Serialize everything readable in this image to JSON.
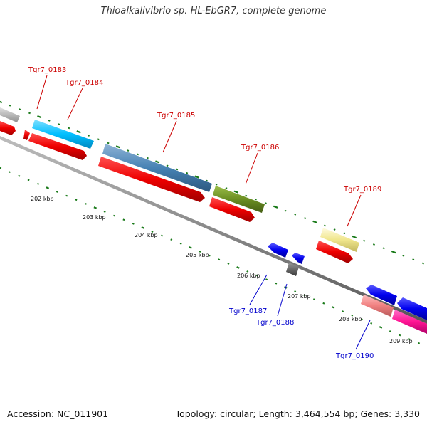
{
  "title": "Thioalkalivibrio sp. HL-EbGR7, complete genome",
  "accession": "Accession: NC_011901",
  "topology": "Topology: circular; Length: 3,464,554 bp; Genes: 3,330",
  "colors": {
    "forward_label": "#cc0000",
    "reverse_label": "#0000cc",
    "backbone": "#808080",
    "tick_mark": "#1a7a1a",
    "cds_red": "#ff0000"
  },
  "ruler": {
    "labels": [
      "202 kbp",
      "203 kbp",
      "204 kbp",
      "205 kbp",
      "206 kbp",
      "207 kbp",
      "208 kbp",
      "209 kbp"
    ]
  },
  "genes": [
    {
      "label": "Tgr7_0183",
      "strand": "forward",
      "feature_color": "#a8a8a8"
    },
    {
      "label": "Tgr7_0184",
      "strand": "forward",
      "feature_color": "#00bfff"
    },
    {
      "label": "Tgr7_0185",
      "strand": "forward",
      "feature_color": "#4682b4"
    },
    {
      "label": "Tgr7_0186",
      "strand": "forward",
      "feature_color": "#6b8e23"
    },
    {
      "label": "Tgr7_0189",
      "strand": "forward",
      "feature_color": "#f0e68c"
    },
    {
      "label": "Tgr7_0187",
      "strand": "reverse",
      "feature_color": "#0000ff"
    },
    {
      "label": "Tgr7_0188",
      "strand": "reverse",
      "feature_color": "#555555"
    },
    {
      "label": "Tgr7_0190",
      "strand": "reverse",
      "feature_color": "#f08080"
    }
  ]
}
